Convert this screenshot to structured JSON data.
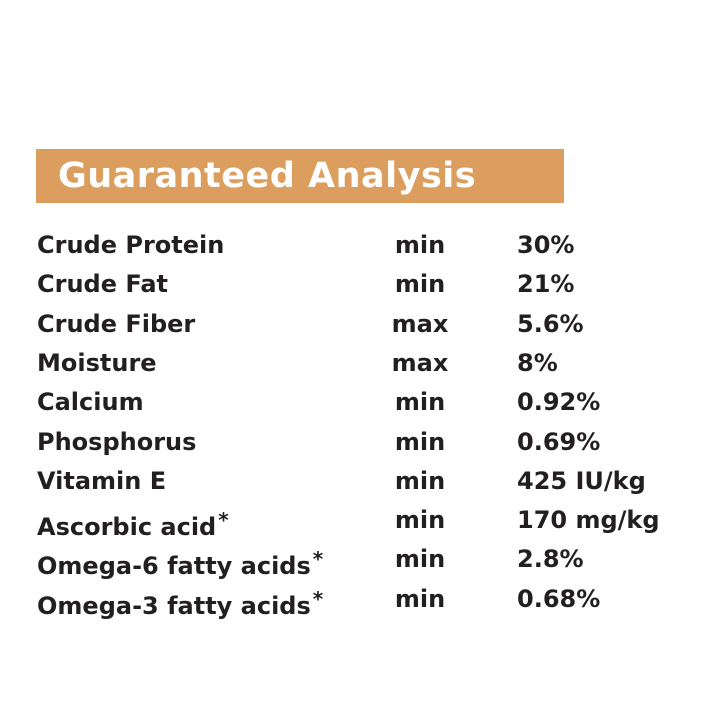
{
  "header": {
    "title": "Guaranteed Analysis"
  },
  "table": {
    "rows": [
      {
        "name": "Crude Protein",
        "level": "min",
        "value": "30%"
      },
      {
        "name": "Crude Fat",
        "level": "min",
        "value": "21%"
      },
      {
        "name": "Crude Fiber",
        "level": "max",
        "value": "5.6%"
      },
      {
        "name": "Moisture",
        "level": "max",
        "value": "8%"
      },
      {
        "name": "Calcium",
        "level": "min",
        "value": "0.92%"
      },
      {
        "name": "Phosphorus",
        "level": "min",
        "value": "0.69%"
      },
      {
        "name": "Vitamin E",
        "level": "min",
        "value": "425 IU/kg"
      },
      {
        "name": "Ascorbic acid",
        "note": "*",
        "level": "min",
        "value": "170 mg/kg"
      },
      {
        "name": "Omega-6 fatty acids",
        "note": "*",
        "level": "min",
        "value": "2.8%"
      },
      {
        "name": "Omega-3 fatty acids",
        "note": "*",
        "level": "min",
        "value": "0.68%"
      }
    ]
  }
}
